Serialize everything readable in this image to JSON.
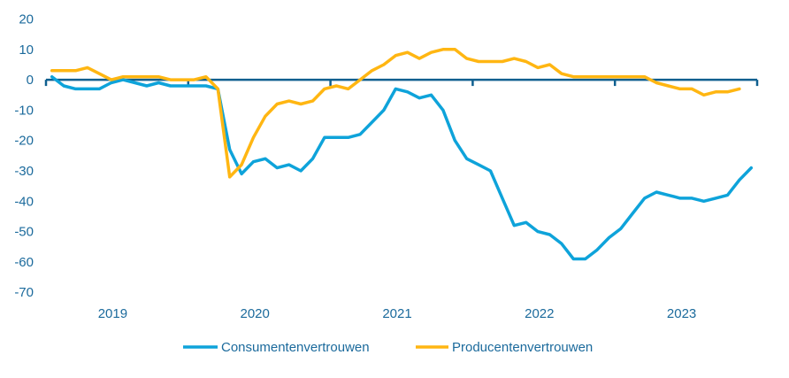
{
  "chart_data": {
    "type": "line",
    "title": "",
    "xlabel": "",
    "ylabel": "",
    "ylim": [
      -70,
      20
    ],
    "yticks": [
      20,
      10,
      0,
      -10,
      -20,
      -30,
      -40,
      -50,
      -60,
      -70
    ],
    "x_start": "2019-01",
    "x_frequency": "monthly",
    "year_labels": [
      "2019",
      "2020",
      "2021",
      "2022",
      "2023"
    ],
    "grid": false,
    "legend_position": "bottom",
    "series": [
      {
        "name": "Consumentenvertrouwen",
        "color": "#0ea3da",
        "values": [
          1,
          -2,
          -3,
          -3,
          -3,
          -1,
          0,
          -1,
          -2,
          -1,
          -2,
          -2,
          -2,
          -2,
          -3,
          -23,
          -31,
          -27,
          -26,
          -29,
          -28,
          -30,
          -26,
          -19,
          -19,
          -19,
          -18,
          -14,
          -10,
          -3,
          -4,
          -6,
          -5,
          -10,
          -20,
          -26,
          -28,
          -30,
          -39,
          -48,
          -47,
          -50,
          -51,
          -54,
          -59,
          -59,
          -56,
          -52,
          -49,
          -44,
          -39,
          -37,
          -38,
          -39,
          -39,
          -40,
          -39,
          -38,
          -33,
          -29
        ]
      },
      {
        "name": "Producentenvertrouwen",
        "color": "#ffb612",
        "values": [
          3,
          3,
          3,
          4,
          2,
          0,
          1,
          1,
          1,
          1,
          0,
          0,
          0,
          1,
          -3,
          -32,
          -28,
          -19,
          -12,
          -8,
          -7,
          -8,
          -7,
          -3,
          -2,
          -3,
          0,
          3,
          5,
          8,
          9,
          7,
          9,
          10,
          10,
          7,
          6,
          6,
          6,
          7,
          6,
          4,
          5,
          2,
          1,
          1,
          1,
          1,
          1,
          1,
          1,
          -1,
          -2,
          -3,
          -3,
          -5,
          -4,
          -4,
          -3
        ]
      }
    ]
  }
}
